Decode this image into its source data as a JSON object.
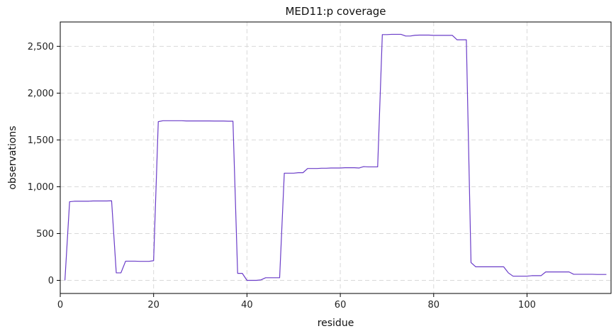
{
  "chart_data": {
    "type": "line",
    "title": "MED11:p coverage",
    "xlabel": "residue",
    "ylabel": "observations",
    "xlim": [
      0,
      118
    ],
    "ylim": [
      -140,
      2760
    ],
    "xticks": [
      0,
      20,
      40,
      60,
      80,
      100
    ],
    "xtick_labels": [
      "0",
      "20",
      "40",
      "60",
      "80",
      "100"
    ],
    "yticks": [
      0,
      500,
      1000,
      1500,
      2000,
      2500
    ],
    "ytick_labels": [
      "0",
      "500",
      "1,000",
      "1,500",
      "2,000",
      "2,500"
    ],
    "grid": true,
    "series": [
      {
        "color": "#6a3cc8",
        "x": [
          1,
          2,
          3,
          4,
          5,
          6,
          7,
          8,
          9,
          10,
          11,
          12,
          13,
          14,
          15,
          16,
          17,
          18,
          19,
          20,
          21,
          22,
          23,
          24,
          25,
          26,
          27,
          28,
          29,
          30,
          31,
          32,
          33,
          34,
          35,
          36,
          37,
          38,
          39,
          40,
          41,
          42,
          43,
          44,
          45,
          46,
          47,
          48,
          49,
          50,
          51,
          52,
          53,
          54,
          55,
          56,
          57,
          58,
          59,
          60,
          61,
          62,
          63,
          64,
          65,
          66,
          67,
          68,
          69,
          70,
          71,
          72,
          73,
          74,
          75,
          76,
          77,
          78,
          79,
          80,
          81,
          82,
          83,
          84,
          85,
          86,
          87,
          88,
          89,
          90,
          91,
          92,
          93,
          94,
          95,
          96,
          97,
          98,
          99,
          100,
          101,
          102,
          103,
          104,
          105,
          106,
          107,
          108,
          109,
          110,
          111,
          112,
          113,
          114,
          115,
          116,
          117
        ],
        "y": [
          0,
          840,
          845,
          845,
          845,
          845,
          848,
          848,
          848,
          848,
          850,
          80,
          80,
          205,
          205,
          205,
          203,
          203,
          203,
          210,
          1695,
          1705,
          1705,
          1705,
          1705,
          1705,
          1703,
          1703,
          1703,
          1703,
          1703,
          1703,
          1702,
          1702,
          1702,
          1700,
          1700,
          75,
          75,
          0,
          0,
          0,
          5,
          28,
          28,
          28,
          28,
          1145,
          1145,
          1145,
          1150,
          1150,
          1195,
          1195,
          1195,
          1198,
          1198,
          1200,
          1200,
          1200,
          1203,
          1203,
          1203,
          1200,
          1215,
          1212,
          1212,
          1212,
          2625,
          2625,
          2628,
          2628,
          2628,
          2610,
          2610,
          2618,
          2620,
          2620,
          2620,
          2617,
          2617,
          2617,
          2617,
          2617,
          2570,
          2570,
          2570,
          190,
          145,
          145,
          145,
          145,
          145,
          145,
          145,
          80,
          45,
          45,
          45,
          45,
          50,
          50,
          50,
          90,
          90,
          90,
          90,
          90,
          90,
          65,
          65,
          65,
          65,
          65,
          63,
          63,
          63
        ]
      }
    ]
  }
}
